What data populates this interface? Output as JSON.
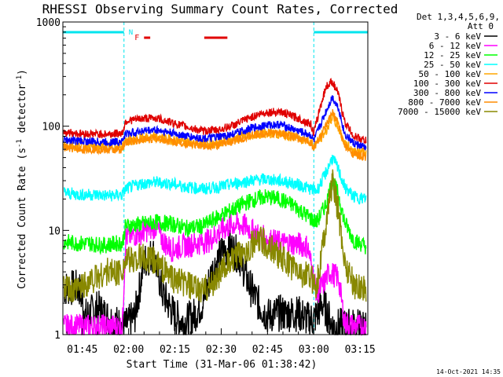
{
  "chart_data": {
    "type": "line",
    "title": "RHESSI Observing Summary Count Rates, Corrected",
    "xlabel": "Start Time (31-Mar-06 01:38:42)",
    "ylabel": "Corrected Count Rate (s",
    "ylabel_sup1": "-1",
    "ylabel_mid": " detector",
    "ylabel_sup2": "-1",
    "ylabel_end": ")",
    "yscale": "log",
    "ylim": [
      1,
      1000
    ],
    "xlim_minutes": [
      98.7,
      197.5
    ],
    "x_ticks": [
      {
        "label": "01:45",
        "minute": 105
      },
      {
        "label": "02:00",
        "minute": 120
      },
      {
        "label": "02:15",
        "minute": 135
      },
      {
        "label": "02:30",
        "minute": 150
      },
      {
        "label": "02:45",
        "minute": 165
      },
      {
        "label": "03:00",
        "minute": 180
      },
      {
        "label": "03:15",
        "minute": 195
      }
    ],
    "y_ticks": [
      {
        "label": "1",
        "value": 1
      },
      {
        "label": "10",
        "value": 10
      },
      {
        "label": "100",
        "value": 100
      },
      {
        "label": "1000",
        "value": 1000
      }
    ],
    "legend_header": [
      "Det 1,3,4,5,6,9,",
      "Att 0"
    ],
    "legend_placement": "right",
    "flags": {
      "N_label": "N",
      "F_label": "F",
      "N_color": "#00e5ee",
      "F_color": "#e00000"
    },
    "night_intervals": [
      [
        98.7,
        118.5
      ],
      [
        180.0,
        197.5
      ]
    ],
    "flare_intervals": [
      [
        125.0,
        127.0
      ],
      [
        144.5,
        152.0
      ]
    ],
    "series": [
      {
        "name": "3 - 6 keV",
        "color": "#000000",
        "x": [
          99,
          104,
          106,
          110,
          114,
          118,
          119,
          122,
          125,
          128,
          131,
          135,
          138,
          141,
          144,
          147,
          150,
          153,
          156,
          159,
          162,
          165,
          168,
          172,
          175,
          178,
          180,
          183,
          186,
          190,
          194,
          197
        ],
        "y": [
          2.8,
          2.8,
          1.5,
          1.8,
          1.4,
          1.2,
          1.2,
          1.5,
          5.0,
          6.0,
          2.5,
          1.5,
          1.3,
          1.5,
          2.0,
          4.0,
          6.0,
          7.0,
          5.5,
          3.0,
          2.0,
          1.5,
          1.6,
          1.6,
          1.6,
          1.4,
          1.4,
          2.0,
          1.2,
          1.2,
          1.2,
          1.2
        ]
      },
      {
        "name": "6 - 12 keV",
        "color": "#ff00ff",
        "x": [
          99,
          101,
          104,
          110,
          114,
          118,
          119,
          124,
          129,
          131,
          134,
          137,
          142,
          146,
          150,
          154,
          158,
          162,
          166,
          170,
          174,
          178,
          181,
          183,
          185,
          188,
          190,
          193,
          196,
          197
        ],
        "y": [
          1.2,
          1.2,
          1.2,
          1.2,
          1.2,
          1.2,
          8.5,
          9.5,
          11.0,
          8.0,
          6.5,
          7.0,
          7.5,
          8.0,
          10.0,
          11.5,
          11.0,
          9.0,
          8.0,
          7.5,
          7.5,
          7.0,
          2.5,
          3.0,
          4.0,
          3.5,
          1.3,
          1.2,
          1.2,
          1.2
        ]
      },
      {
        "name": "12 - 25 keV",
        "color": "#00ff00",
        "x": [
          99,
          103,
          107,
          112,
          116,
          118,
          119,
          124,
          129,
          134,
          139,
          144,
          149,
          154,
          159,
          164,
          169,
          174,
          179,
          181,
          184,
          186,
          188,
          190,
          193,
          197
        ],
        "y": [
          7.8,
          7.5,
          7.5,
          7.2,
          7.5,
          7.5,
          11.0,
          11.5,
          12.0,
          11.5,
          10.5,
          11.0,
          13.5,
          16.0,
          19.0,
          21.0,
          20.0,
          17.0,
          13.0,
          12.0,
          18.0,
          30.0,
          22.0,
          12.0,
          8.0,
          7.0
        ]
      },
      {
        "name": "25 - 50 keV",
        "color": "#00ffff",
        "x": [
          99,
          104,
          109,
          114,
          118,
          119,
          124,
          129,
          134,
          139,
          144,
          149,
          154,
          159,
          164,
          169,
          174,
          179,
          181,
          184,
          186,
          188,
          190,
          193,
          197
        ],
        "y": [
          23,
          22,
          22,
          21.5,
          22,
          25,
          28,
          29,
          28,
          26,
          25,
          26,
          28,
          30,
          31,
          30,
          28,
          25,
          24,
          36,
          50,
          38,
          26,
          21,
          20
        ]
      },
      {
        "name": "50 - 100 keV",
        "color": "#ffa500",
        "x": [
          99,
          104,
          109,
          114,
          118,
          119,
          124,
          129,
          134,
          139,
          144,
          149,
          154,
          159,
          164,
          169,
          174,
          179,
          180,
          184,
          186,
          188,
          190,
          193,
          197
        ],
        "y": [
          66,
          64,
          64,
          63,
          64,
          72,
          76,
          78,
          74,
          70,
          68,
          70,
          76,
          82,
          86,
          84,
          78,
          72,
          64,
          90,
          125,
          95,
          68,
          58,
          55
        ]
      },
      {
        "name": "100 - 300 keV",
        "color": "#e00000",
        "x": [
          99,
          104,
          109,
          114,
          118,
          119,
          124,
          129,
          134,
          139,
          144,
          149,
          154,
          159,
          164,
          169,
          174,
          179,
          180,
          182,
          184,
          186,
          188,
          190,
          193,
          197
        ],
        "y": [
          88,
          85,
          84,
          84,
          86,
          112,
          118,
          120,
          108,
          98,
          90,
          92,
          102,
          120,
          135,
          138,
          122,
          105,
          85,
          150,
          240,
          270,
          200,
          110,
          80,
          72
        ]
      },
      {
        "name": "300 - 800 keV",
        "color": "#0000ff",
        "x": [
          99,
          104,
          109,
          114,
          118,
          119,
          124,
          129,
          134,
          139,
          144,
          149,
          154,
          159,
          164,
          169,
          174,
          179,
          180,
          184,
          186,
          188,
          190,
          193,
          197
        ],
        "y": [
          74,
          72,
          71,
          70,
          72,
          84,
          90,
          92,
          86,
          80,
          76,
          78,
          84,
          94,
          102,
          104,
          92,
          82,
          72,
          140,
          190,
          150,
          84,
          68,
          62
        ]
      },
      {
        "name": "800 - 7000 keV",
        "color": "#ff8c00",
        "x": [
          99,
          104,
          109,
          114,
          118,
          119,
          124,
          129,
          134,
          139,
          144,
          149,
          154,
          159,
          164,
          169,
          174,
          179,
          180,
          184,
          186,
          188,
          190,
          193,
          197
        ],
        "y": [
          62,
          60,
          60,
          59,
          60,
          70,
          74,
          76,
          72,
          68,
          65,
          66,
          72,
          80,
          86,
          86,
          78,
          70,
          62,
          100,
          135,
          105,
          64,
          54,
          50
        ]
      },
      {
        "name": "7000 - 15000 keV",
        "color": "#888800",
        "x": [
          99,
          102,
          105,
          109,
          113,
          117,
          119,
          124,
          129,
          134,
          139,
          143,
          147,
          151,
          155,
          159,
          163,
          167,
          171,
          175,
          179,
          181,
          184,
          186,
          188,
          190,
          193,
          197
        ],
        "y": [
          2.8,
          2.5,
          3.0,
          3.5,
          4.0,
          4.0,
          5.0,
          5.5,
          5.0,
          3.5,
          3.0,
          2.6,
          3.0,
          4.5,
          5.5,
          7.0,
          8.0,
          6.5,
          5.0,
          4.0,
          3.5,
          3.0,
          12.0,
          30.0,
          15.0,
          5.0,
          3.0,
          2.8
        ]
      }
    ]
  },
  "footer": {
    "date_stamp": "14-Oct-2021 14:35"
  }
}
